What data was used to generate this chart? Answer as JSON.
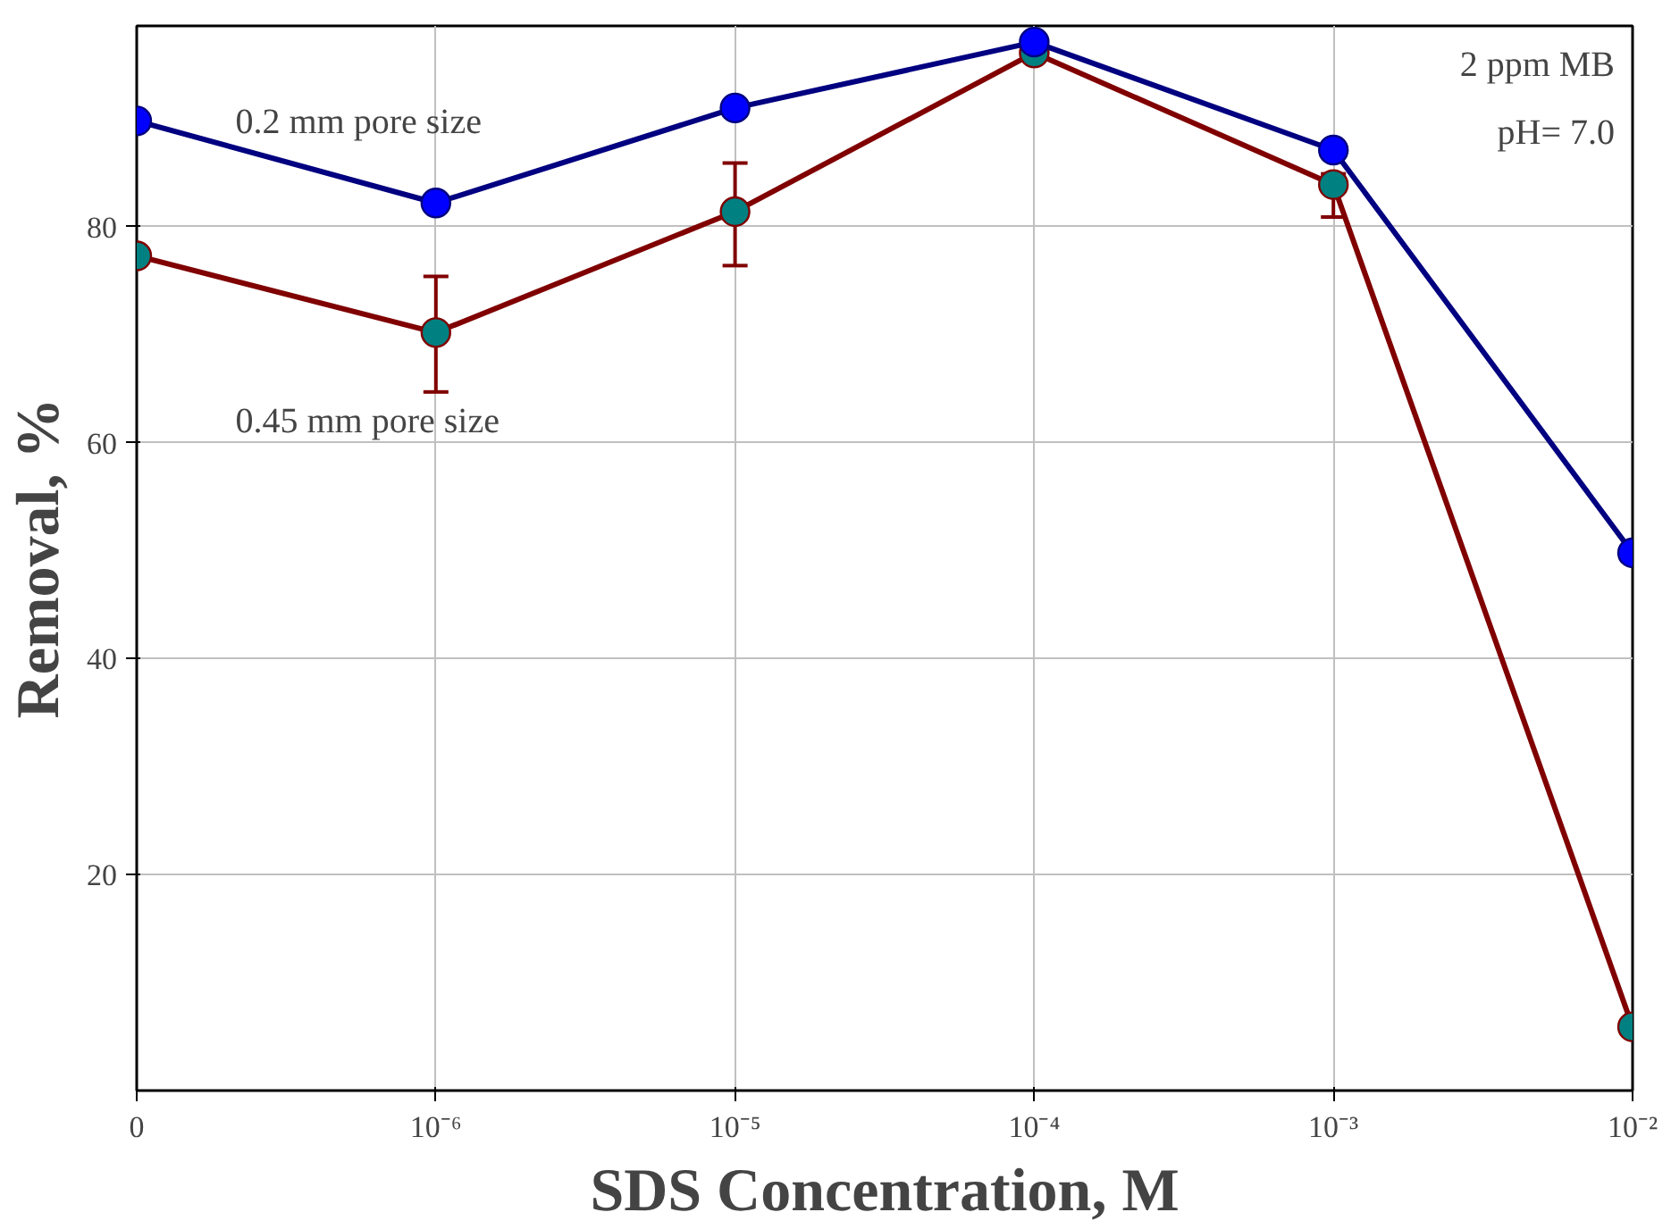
{
  "chart_data": {
    "type": "line",
    "xlabel": "SDS Concentration, M",
    "ylabel": "Removal, %",
    "categories": [
      "0",
      "10⁻⁶",
      "10⁻⁵",
      "10⁻⁴",
      "10⁻³",
      "10⁻²"
    ],
    "series": [
      {
        "name": "0.2 mm pore size",
        "color": "#000080",
        "colors": [
          "#0000ff",
          "#0000ff",
          "#0000ff",
          "#0000ff",
          "#0000ff",
          "#0000ff"
        ],
        "values": [
          89.8,
          82.2,
          91.0,
          97.1,
          87.1,
          49.8
        ]
      },
      {
        "name": "0.45 mm pore size",
        "color": "#800000",
        "colors": [
          "#008080",
          "#008080",
          "#008080",
          "#008080",
          "#008080",
          "#008080"
        ],
        "values": [
          77.3,
          70.2,
          81.4,
          96.1,
          83.9,
          5.9
        ],
        "errors": [
          null,
          [
            64.7,
            75.4
          ],
          [
            76.4,
            85.9
          ],
          null,
          [
            80.9,
            84.9
          ],
          null
        ]
      }
    ],
    "annotations": [
      "2 ppm MB",
      "pH= 7.0"
    ],
    "ylim": [
      0,
      98.6
    ],
    "yticks": [
      20,
      40,
      60,
      80
    ],
    "grid": true,
    "marker": "circle",
    "line_style": "solid"
  }
}
